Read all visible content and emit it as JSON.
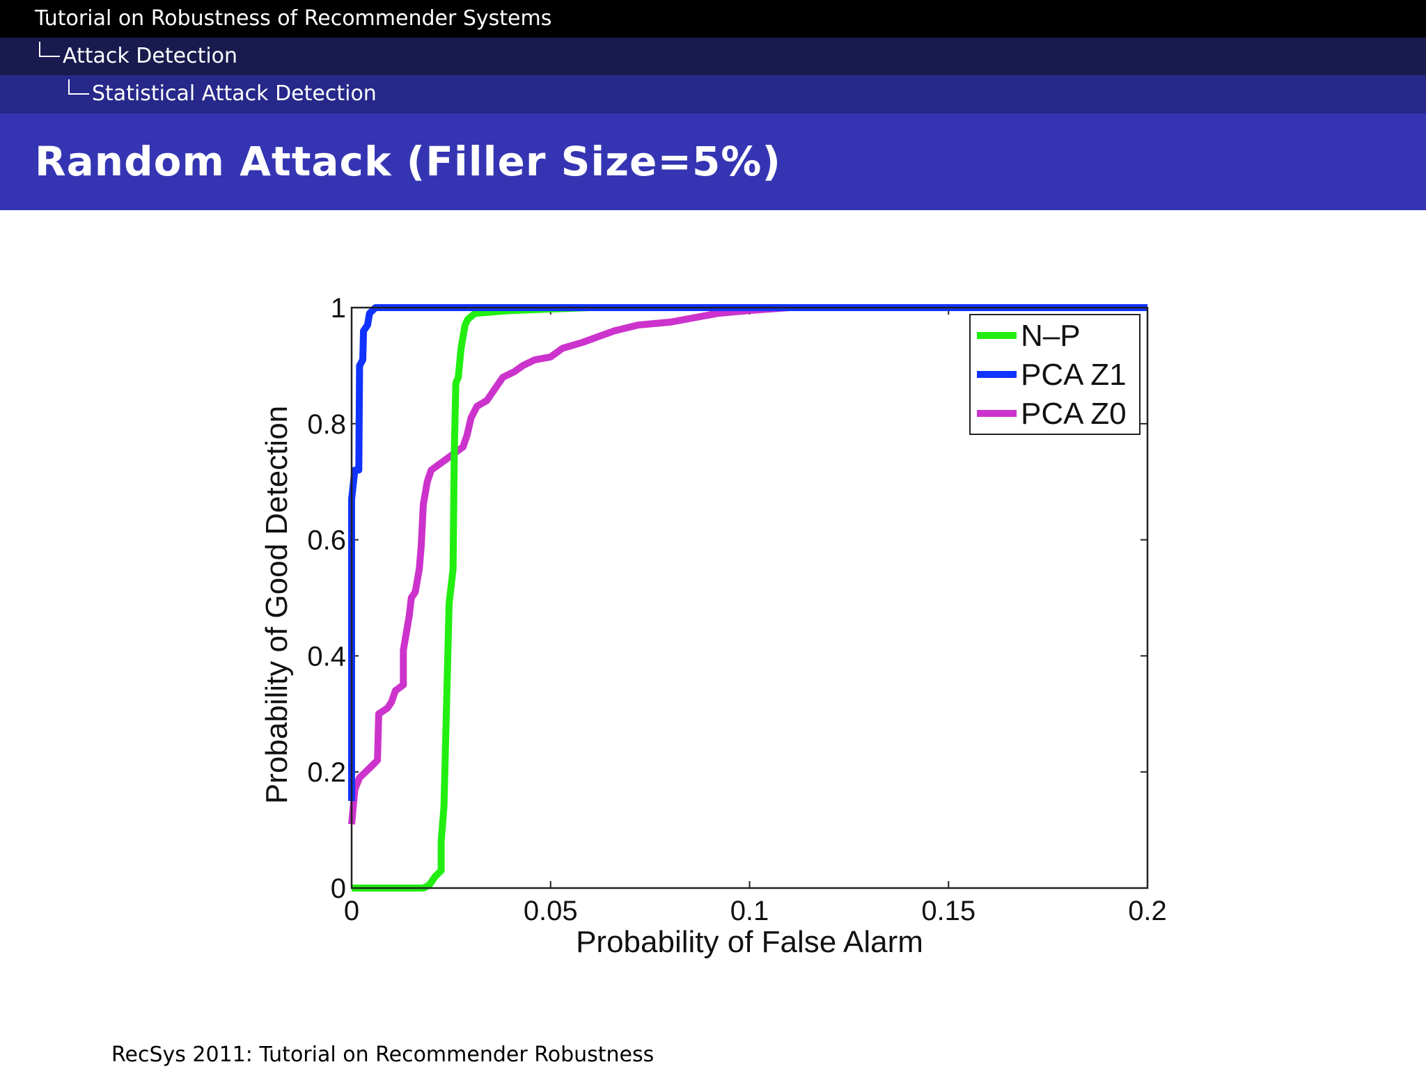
{
  "header": {
    "presentation_title": "Tutorial on Robustness of Recommender Systems",
    "section": "Attack Detection",
    "subsection": "Statistical Attack Detection"
  },
  "frame_title": "Random Attack (Filler Size=5%)",
  "footer": "RecSys 2011: Tutorial on Recommender Robustness",
  "colors": {
    "nav_top": "#000000",
    "nav_mid": "#191a4e",
    "nav_low": "#26288a",
    "title_bar": "#3535b3",
    "np": "#22ee11",
    "pca_z1": "#1133ff",
    "pca_z0": "#cc33cc"
  },
  "chart_data": {
    "type": "line",
    "title": "",
    "xlabel": "Probability of False Alarm",
    "ylabel": "Probability of Good Detection",
    "xlim": [
      0,
      0.2
    ],
    "ylim": [
      0,
      1
    ],
    "xticks": [
      0,
      0.05,
      0.1,
      0.15,
      0.2
    ],
    "yticks": [
      0,
      0.2,
      0.4,
      0.6,
      0.8,
      1
    ],
    "xtick_labels": [
      "0",
      "0.05",
      "0.1",
      "0.15",
      "0.2"
    ],
    "ytick_labels": [
      "0",
      "0.2",
      "0.4",
      "0.6",
      "0.8",
      "1"
    ],
    "grid": false,
    "legend": "top-right",
    "series": [
      {
        "name": "N–P",
        "color": "#22ee11",
        "points": [
          [
            0,
            0
          ],
          [
            0.018,
            0
          ],
          [
            0.0195,
            0.005
          ],
          [
            0.021,
            0.02
          ],
          [
            0.0225,
            0.03
          ],
          [
            0.0225,
            0.08
          ],
          [
            0.0232,
            0.14
          ],
          [
            0.0238,
            0.3
          ],
          [
            0.0245,
            0.49
          ],
          [
            0.025,
            0.52
          ],
          [
            0.0255,
            0.55
          ],
          [
            0.0258,
            0.75
          ],
          [
            0.0262,
            0.87
          ],
          [
            0.0268,
            0.88
          ],
          [
            0.0275,
            0.93
          ],
          [
            0.0285,
            0.97
          ],
          [
            0.0292,
            0.98
          ],
          [
            0.031,
            0.99
          ],
          [
            0.04,
            0.995
          ],
          [
            0.06,
            1
          ],
          [
            0.2,
            1
          ]
        ]
      },
      {
        "name": "PCA Z1",
        "color": "#1133ff",
        "points": [
          [
            0,
            0.15
          ],
          [
            0,
            0.67
          ],
          [
            0.0008,
            0.72
          ],
          [
            0.0018,
            0.72
          ],
          [
            0.002,
            0.9
          ],
          [
            0.0028,
            0.91
          ],
          [
            0.003,
            0.96
          ],
          [
            0.004,
            0.97
          ],
          [
            0.0045,
            0.99
          ],
          [
            0.006,
            1
          ],
          [
            0.2,
            1
          ]
        ]
      },
      {
        "name": "PCA Z0",
        "color": "#cc33cc",
        "points": [
          [
            0,
            0.11
          ],
          [
            0.0008,
            0.17
          ],
          [
            0.002,
            0.19
          ],
          [
            0.0035,
            0.2
          ],
          [
            0.005,
            0.21
          ],
          [
            0.0065,
            0.22
          ],
          [
            0.0068,
            0.3
          ],
          [
            0.009,
            0.31
          ],
          [
            0.01,
            0.32
          ],
          [
            0.011,
            0.34
          ],
          [
            0.013,
            0.35
          ],
          [
            0.013,
            0.41
          ],
          [
            0.0145,
            0.47
          ],
          [
            0.015,
            0.5
          ],
          [
            0.016,
            0.51
          ],
          [
            0.017,
            0.55
          ],
          [
            0.0175,
            0.59
          ],
          [
            0.018,
            0.66
          ],
          [
            0.019,
            0.7
          ],
          [
            0.02,
            0.72
          ],
          [
            0.022,
            0.73
          ],
          [
            0.024,
            0.74
          ],
          [
            0.026,
            0.75
          ],
          [
            0.028,
            0.76
          ],
          [
            0.029,
            0.78
          ],
          [
            0.03,
            0.81
          ],
          [
            0.0315,
            0.83
          ],
          [
            0.034,
            0.84
          ],
          [
            0.036,
            0.86
          ],
          [
            0.038,
            0.88
          ],
          [
            0.041,
            0.89
          ],
          [
            0.043,
            0.9
          ],
          [
            0.046,
            0.91
          ],
          [
            0.05,
            0.915
          ],
          [
            0.053,
            0.93
          ],
          [
            0.058,
            0.94
          ],
          [
            0.062,
            0.95
          ],
          [
            0.066,
            0.96
          ],
          [
            0.072,
            0.97
          ],
          [
            0.08,
            0.975
          ],
          [
            0.088,
            0.985
          ],
          [
            0.092,
            0.99
          ],
          [
            0.1,
            0.995
          ],
          [
            0.11,
            1
          ],
          [
            0.2,
            1
          ]
        ]
      }
    ]
  }
}
